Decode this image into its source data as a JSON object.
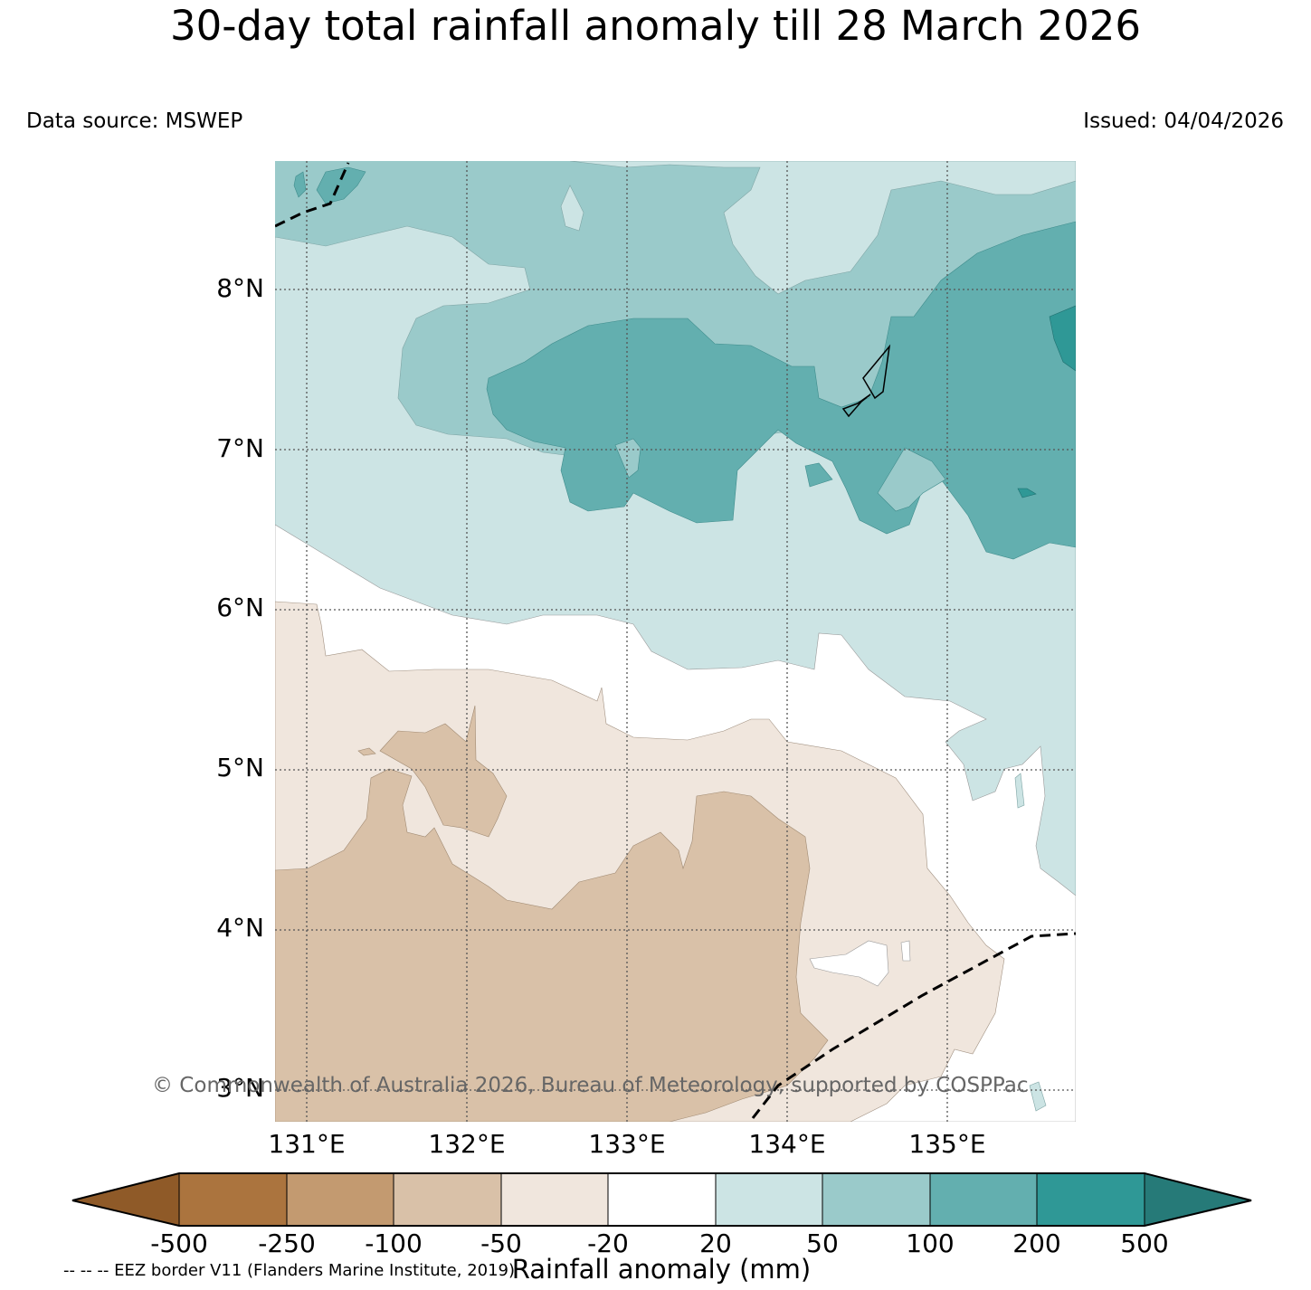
{
  "title": "30-day total rainfall anomaly till 28 March 2026",
  "data_source": "Data source: MSWEP",
  "issued": "Issued: 04/04/2026",
  "copyright": "© Commonwealth of Australia 2026, Bureau of Meteorology, supported by COSPPac",
  "eez_note": "-- -- -- EEZ border V11 (Flanders Marine Institute, 2019)",
  "map": {
    "lat_labels": [
      "8°N",
      "7°N",
      "6°N",
      "5°N",
      "4°N",
      "3°N"
    ],
    "lon_labels": [
      "131°E",
      "132°E",
      "133°E",
      "134°E",
      "135°E"
    ]
  },
  "colorbar": {
    "title": "Rainfall anomaly (mm)",
    "labels": [
      "-500",
      "-250",
      "-100",
      "-50",
      "-20",
      "20",
      "50",
      "100",
      "200",
      "500"
    ],
    "colors": [
      "#8f5a28",
      "#ab743e",
      "#c39a70",
      "#d9c1a8",
      "#f0e6dd",
      "#ffffff",
      "#cce4e4",
      "#9acaca",
      "#63afaf",
      "#2f9896",
      "#267a78"
    ]
  }
}
